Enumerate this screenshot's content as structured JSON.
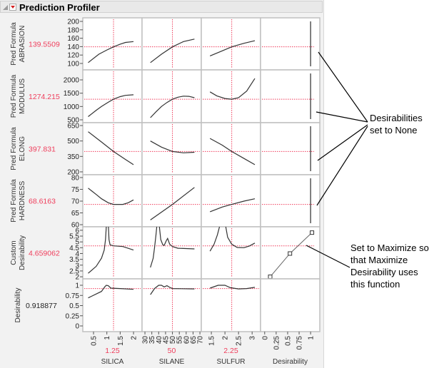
{
  "header": {
    "title": "Prediction Profiler",
    "menu_icon": "red-triangle-menu-icon",
    "disclosure_icon": "disclosure-triangle-icon"
  },
  "colors": {
    "current": "#ef3e5c",
    "curve": "#333333",
    "grid": "#c0c0c0"
  },
  "factors": [
    {
      "name": "SILICA",
      "current": "1.25",
      "value": 1.25,
      "range": [
        0.098,
        2.32
      ],
      "ticks": [
        "0.5",
        "1",
        "1.5",
        "2"
      ],
      "curves": [
        [
          [
            0.3,
            102
          ],
          [
            0.7,
            122
          ],
          [
            1.0,
            132
          ],
          [
            1.25,
            139.5
          ],
          [
            1.5,
            146
          ],
          [
            1.7,
            150
          ],
          [
            2,
            152
          ]
        ],
        [
          [
            0.3,
            620
          ],
          [
            0.6,
            860
          ],
          [
            0.8,
            1000
          ],
          [
            1.05,
            1160
          ],
          [
            1.25,
            1274
          ],
          [
            1.5,
            1370
          ],
          [
            1.7,
            1420
          ],
          [
            2,
            1440
          ]
        ],
        [
          [
            0.3,
            590
          ],
          [
            0.8,
            490
          ],
          [
            1.25,
            398
          ],
          [
            1.7,
            320
          ],
          [
            2,
            270
          ]
        ],
        [
          [
            0.3,
            75.5
          ],
          [
            0.6,
            72.8
          ],
          [
            0.8,
            71
          ],
          [
            1.05,
            69.3
          ],
          [
            1.25,
            68.6
          ],
          [
            1.6,
            68.6
          ],
          [
            1.8,
            69.3
          ],
          [
            2,
            70.5
          ]
        ],
        [
          [
            0.3,
            2.3
          ],
          [
            0.6,
            2.9
          ],
          [
            0.8,
            3.6
          ],
          [
            0.9,
            4.3
          ],
          [
            0.95,
            5.2
          ],
          [
            0.98,
            6.3
          ],
          null,
          [
            1.06,
            6.3
          ],
          [
            1.08,
            5.2
          ],
          [
            1.12,
            4.75
          ],
          [
            1.25,
            4.66
          ],
          [
            1.6,
            4.6
          ],
          [
            2,
            4.3
          ]
        ],
        [
          [
            0.3,
            0.69
          ],
          [
            0.8,
            0.85
          ],
          [
            0.92,
            0.96
          ],
          [
            0.98,
            1.0
          ],
          [
            1.05,
            0.99
          ],
          [
            1.15,
            0.93
          ],
          [
            1.5,
            0.92
          ],
          [
            2,
            0.9
          ]
        ]
      ]
    },
    {
      "name": "SILANE",
      "current": "50",
      "value": 50,
      "range": [
        27.9,
        71.0
      ],
      "ticks": [
        "30",
        "35",
        "40",
        "45",
        "50",
        "55",
        "60",
        "65",
        "70"
      ],
      "curves": [
        [
          [
            34,
            102
          ],
          [
            42,
            122
          ],
          [
            50,
            139.5
          ],
          [
            58,
            152
          ],
          [
            66,
            158
          ]
        ],
        [
          [
            34,
            580
          ],
          [
            38,
            800
          ],
          [
            42,
            1000
          ],
          [
            46,
            1150
          ],
          [
            50,
            1274
          ],
          [
            54,
            1350
          ],
          [
            58,
            1390
          ],
          [
            62,
            1380
          ],
          [
            66,
            1330
          ]
        ],
        [
          [
            34,
            500
          ],
          [
            42,
            440
          ],
          [
            50,
            398
          ],
          [
            58,
            385
          ],
          [
            66,
            390
          ]
        ],
        [
          [
            34,
            62
          ],
          [
            50,
            68.6
          ],
          [
            66,
            75.8
          ]
        ],
        [
          [
            34,
            2.8
          ],
          [
            36,
            3.6
          ],
          [
            37,
            4.5
          ],
          [
            38,
            5.6
          ],
          [
            38.6,
            6.3
          ],
          null,
          [
            40.5,
            6.3
          ],
          [
            41.5,
            5.2
          ],
          [
            43,
            4.75
          ],
          [
            44,
            4.7
          ],
          [
            45.5,
            5.1
          ],
          [
            46.5,
            5.3
          ],
          [
            48,
            4.8
          ],
          [
            50,
            4.6
          ],
          [
            54,
            4.45
          ],
          [
            66,
            4.4
          ]
        ],
        [
          [
            34,
            0.77
          ],
          [
            37,
            0.92
          ],
          [
            40,
            1.0
          ],
          [
            42,
            1.0
          ],
          [
            44,
            0.96
          ],
          [
            46,
            0.99
          ],
          [
            48,
            0.95
          ],
          [
            50,
            0.92
          ],
          [
            66,
            0.91
          ]
        ]
      ]
    },
    {
      "name": "SULFUR",
      "current": "2.25",
      "value": 2.25,
      "range": [
        1.13,
        3.31
      ],
      "ticks": [
        "1.5",
        "2",
        "2.5",
        "3"
      ],
      "curves": [
        [
          [
            1.45,
            118
          ],
          [
            1.9,
            130
          ],
          [
            2.25,
            139.5
          ],
          [
            2.7,
            148
          ],
          [
            3.1,
            154
          ]
        ],
        [
          [
            1.45,
            1550
          ],
          [
            1.7,
            1400
          ],
          [
            2.0,
            1300
          ],
          [
            2.25,
            1274
          ],
          [
            2.5,
            1330
          ],
          [
            2.8,
            1580
          ],
          [
            3.1,
            2050
          ]
        ],
        [
          [
            1.45,
            525
          ],
          [
            1.9,
            460
          ],
          [
            2.25,
            398
          ],
          [
            2.7,
            330
          ],
          [
            3.1,
            270
          ]
        ],
        [
          [
            1.45,
            65.5
          ],
          [
            1.9,
            67.5
          ],
          [
            2.25,
            68.6
          ],
          [
            2.7,
            70
          ],
          [
            3.1,
            71
          ]
        ],
        [
          [
            1.45,
            4.2
          ],
          [
            1.6,
            4.8
          ],
          [
            1.72,
            5.6
          ],
          [
            1.8,
            6.3
          ],
          null,
          [
            2.03,
            6.3
          ],
          [
            2.1,
            5.4
          ],
          [
            2.25,
            4.8
          ],
          [
            2.45,
            4.52
          ],
          [
            2.7,
            4.5
          ],
          [
            2.9,
            4.65
          ],
          [
            3.1,
            4.9
          ]
        ],
        [
          [
            1.45,
            0.93
          ],
          [
            1.75,
            1.0
          ],
          [
            2.0,
            1.0
          ],
          [
            2.2,
            0.94
          ],
          [
            2.5,
            0.91
          ],
          [
            2.8,
            0.92
          ],
          [
            3.1,
            0.95
          ]
        ]
      ]
    },
    {
      "name": "Desirability",
      "current": "",
      "range": [
        -0.09,
        1.2
      ],
      "ticks": [
        "0",
        "0.25",
        "0.5",
        "0.75",
        "1"
      ]
    }
  ],
  "responses": [
    {
      "label1": "Pred Formula",
      "label2": "ABRASION",
      "current": "139.5509",
      "value": 139.5509,
      "range": [
        84.7,
        208.5
      ],
      "ticks": [
        "100",
        "120",
        "140",
        "160",
        "180",
        "200"
      ],
      "desirability": "None"
    },
    {
      "label1": "Pred Formula",
      "label2": "MODULUS",
      "current": "1274.215",
      "value": 1274.215,
      "range": [
        393,
        2375
      ],
      "ticks": [
        "500",
        "1000",
        "1500",
        "2000"
      ],
      "desirability": "None"
    },
    {
      "label1": "Pred Formula",
      "label2": "ELONG",
      "current": "397.831",
      "value": 397.831,
      "range": [
        172,
        678
      ],
      "ticks": [
        "200",
        "350",
        "500",
        "650"
      ],
      "desirability": "None"
    },
    {
      "label1": "Pred Formula",
      "label2": "HARDNESS",
      "current": "68.6163",
      "value": 68.6163,
      "range": [
        59.1,
        81.2
      ],
      "ticks": [
        "60",
        "65",
        "70",
        "75",
        "80"
      ],
      "desirability": "None"
    },
    {
      "label1": "Custom",
      "label2": "Desirability",
      "current": "4.659062",
      "value": 4.659062,
      "range": [
        1.82,
        6.3
      ],
      "ticks": [
        "2",
        "2.5",
        "3",
        "3.5",
        "4",
        "4.5",
        "5",
        "5.5",
        "6"
      ],
      "desirability": "Maximize",
      "desirability_points": [
        [
          0.12,
          2.0
        ],
        [
          0.55,
          4.0
        ],
        [
          1.03,
          5.8
        ]
      ]
    },
    {
      "label1": "Desirability",
      "label2": "",
      "current": "0.918877",
      "value": 0.918877,
      "range": [
        -0.14,
        1.158
      ],
      "ticks": [
        "0",
        "0.25",
        "0.5",
        "0.75",
        "1"
      ]
    }
  ],
  "annotations": {
    "none_note": [
      "Desirabilities",
      "set to None"
    ],
    "maximize_note": [
      "Set to Maximize so",
      "that Maximize",
      "Desirability uses",
      "this function"
    ]
  }
}
